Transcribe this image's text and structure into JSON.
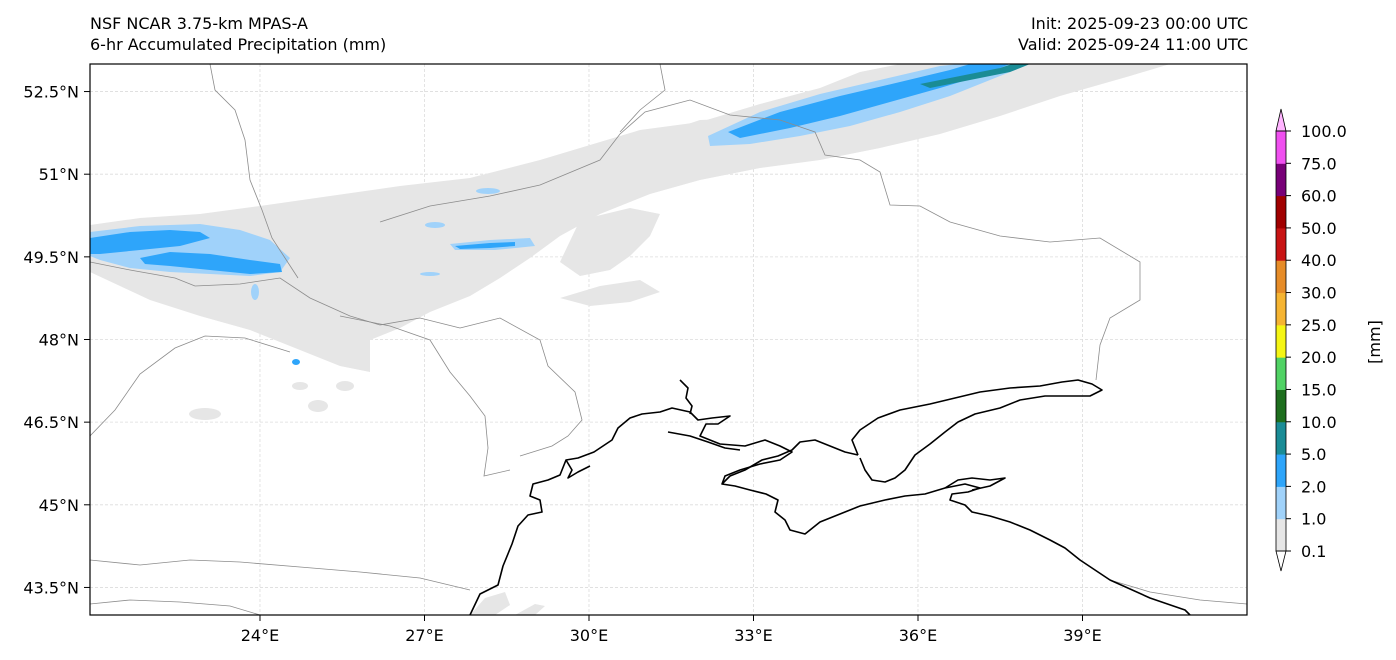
{
  "header": {
    "model": "NSF NCAR 3.75-km MPAS-A",
    "field": "6-hr Accumulated Precipitation (mm)",
    "init": "Init: 2025-09-23 00:00 UTC",
    "valid": "Valid: 2025-09-24 11:00 UTC"
  },
  "map": {
    "lon_range": [
      20.9,
      42.0
    ],
    "lat_range": [
      43.0,
      53.0
    ],
    "lon_ticks": [
      {
        "value": 24,
        "label": "24°E"
      },
      {
        "value": 27,
        "label": "27°E"
      },
      {
        "value": 30,
        "label": "30°E"
      },
      {
        "value": 33,
        "label": "33°E"
      },
      {
        "value": 36,
        "label": "36°E"
      },
      {
        "value": 39,
        "label": "39°E"
      }
    ],
    "lat_ticks": [
      {
        "value": 52.5,
        "label": "52.5°N"
      },
      {
        "value": 51.0,
        "label": "51°N"
      },
      {
        "value": 49.5,
        "label": "49.5°N"
      },
      {
        "value": 48.0,
        "label": "48°N"
      },
      {
        "value": 46.5,
        "label": "46.5°N"
      },
      {
        "value": 45.0,
        "label": "45°N"
      },
      {
        "value": 43.5,
        "label": "43.5°N"
      }
    ],
    "gridlines": true
  },
  "colorbar": {
    "unit_label": "[mm]",
    "levels": [
      "0.1",
      "1.0",
      "2.0",
      "5.0",
      "10.0",
      "15.0",
      "20.0",
      "25.0",
      "30.0",
      "40.0",
      "50.0",
      "60.0",
      "75.0",
      "100.0"
    ],
    "colors": [
      "#e6e6e6",
      "#a0d2fa",
      "#2ea5fa",
      "#1a8c96",
      "#1e6e1e",
      "#50d264",
      "#f5f514",
      "#f5b432",
      "#e68c28",
      "#c81414",
      "#a00000",
      "#780078",
      "#f050f0"
    ],
    "under_color": "#ffffff",
    "over_color": "#ffb4ff"
  },
  "legend_colors": {
    "coast": "#000000",
    "border": "#8c8c8c",
    "grid": "#dcdcdc"
  }
}
